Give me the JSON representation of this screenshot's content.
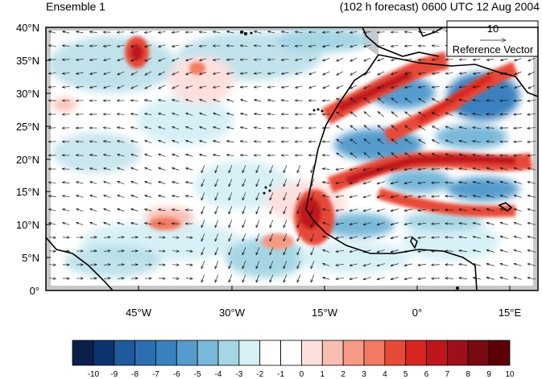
{
  "header": {
    "ensemble_label": "Ensemble 1",
    "forecast_label": "(102 h forecast) 0600 UTC 12 Aug 2004"
  },
  "axes": {
    "lat_labels": [
      "0°",
      "5°N",
      "10°N",
      "15°N",
      "20°N",
      "25°N",
      "30°N",
      "35°N",
      "40°N"
    ],
    "lon_labels": [
      "45°W",
      "30°W",
      "15°W",
      "0°",
      "15°E"
    ]
  },
  "reference_vector": {
    "value": "10",
    "label": "Reference Vector"
  },
  "colorbar": {
    "labels": [
      "-10",
      "-9",
      "-8",
      "-7",
      "-6",
      "-5",
      "-4",
      "-3",
      "-2",
      "-1",
      "0",
      "1",
      "2",
      "3",
      "4",
      "5",
      "6",
      "7",
      "8",
      "9",
      "10"
    ],
    "colors": [
      "#0b1f4a",
      "#0c3470",
      "#1f5a9c",
      "#2b6fb2",
      "#3a81bf",
      "#559ccd",
      "#79b8d9",
      "#a6d6e3",
      "#d7f0f6",
      "#ffffff",
      "#ffffff",
      "#fde0de",
      "#f9bdb1",
      "#f69a86",
      "#f27a62",
      "#e74a37",
      "#d9251f",
      "#c0161b",
      "#9d0f1a",
      "#7a0a13",
      "#5c0008"
    ]
  },
  "colors": {
    "positive": "#e74a37",
    "negative": "#3a81bf",
    "coast": "#000000",
    "nodata": "#c8c8c8"
  }
}
